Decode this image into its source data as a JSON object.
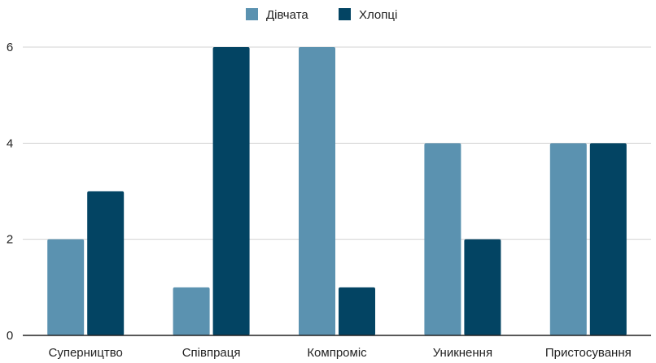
{
  "chart_data": {
    "type": "bar",
    "categories": [
      "Суперництво",
      "Співпраця",
      "Компроміс",
      "Уникнення",
      "Пристосування"
    ],
    "series": [
      {
        "name": "Дівчата",
        "values": [
          2,
          1,
          6,
          4,
          4
        ],
        "color": "#5b92b0"
      },
      {
        "name": "Хлопці",
        "values": [
          3,
          6,
          1,
          2,
          4
        ],
        "color": "#034463"
      }
    ],
    "y_ticks": [
      "0",
      "2",
      "4",
      "6"
    ],
    "ylim": [
      0,
      6
    ],
    "grid": true,
    "legend_position": "top-center",
    "colors": {
      "grid": "#d3d3d3",
      "axis": "#222222",
      "text": "#222222"
    }
  }
}
